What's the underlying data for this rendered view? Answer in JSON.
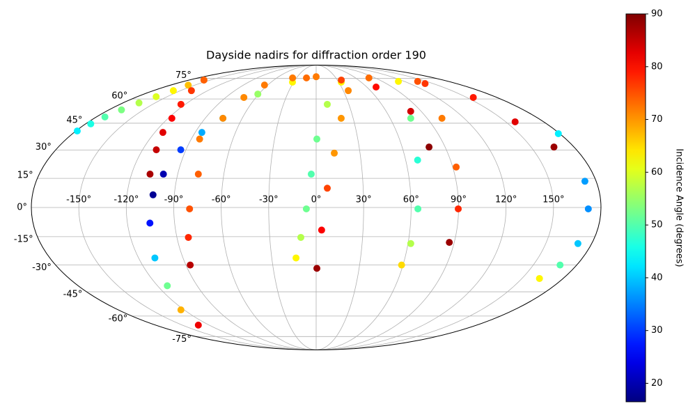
{
  "chart_data": {
    "type": "scatter",
    "projection": "mollweide",
    "title": "Dayside nadirs for diffraction order 190",
    "colormap": "jet",
    "grid": true,
    "xlim": [
      -180,
      180
    ],
    "ylim": [
      -90,
      90
    ],
    "xticks": [
      {
        "value": -150,
        "label": "-150°"
      },
      {
        "value": -120,
        "label": "-120°"
      },
      {
        "value": -90,
        "label": "-90°"
      },
      {
        "value": -60,
        "label": "-60°"
      },
      {
        "value": -30,
        "label": "-30°"
      },
      {
        "value": 0,
        "label": "0°"
      },
      {
        "value": 30,
        "label": "30°"
      },
      {
        "value": 60,
        "label": "60°"
      },
      {
        "value": 90,
        "label": "90°"
      },
      {
        "value": 120,
        "label": "120°"
      },
      {
        "value": 150,
        "label": "150°"
      }
    ],
    "yticks": [
      {
        "value": -75,
        "label": "-75°"
      },
      {
        "value": -60,
        "label": "-60°"
      },
      {
        "value": -45,
        "label": "-45°"
      },
      {
        "value": -30,
        "label": "-30°"
      },
      {
        "value": -15,
        "label": "-15°"
      },
      {
        "value": 0,
        "label": "0°"
      },
      {
        "value": 15,
        "label": "15°"
      },
      {
        "value": 30,
        "label": "30°"
      },
      {
        "value": 45,
        "label": "45°"
      },
      {
        "value": 60,
        "label": "60°"
      },
      {
        "value": 75,
        "label": "75°"
      }
    ],
    "colorbar": {
      "label": "Incidence Angle (degrees)",
      "clim": [
        16.5,
        90
      ],
      "ticks": [
        20,
        30,
        40,
        50,
        60,
        70,
        80,
        90
      ]
    },
    "series": [
      {
        "x": [
          -179,
          -176,
          -173,
          -169,
          -165,
          -161,
          -158,
          -158,
          -159
        ],
        "y": [
          40.5,
          44.6,
          48.7,
          53,
          57.4,
          61.5,
          65.7,
          69.7,
          73.7
        ],
        "values": [
          43,
          46,
          50,
          53,
          57,
          60,
          63,
          67,
          72
        ]
      },
      {
        "x": [
          -159,
          -138,
          -124,
          -117,
          -114,
          -110.5,
          -108
        ],
        "y": [
          73.7,
          65.7,
          56.5,
          47.9,
          39.7,
          30.1,
          17.2
        ],
        "values": [
          74,
          77,
          79,
          81,
          83,
          85,
          87
        ]
      },
      {
        "x": [
          -31.5,
          -61,
          -75.6,
          -85,
          -93.6,
          -99.3,
          -103.5,
          -105.7,
          -109,
          -112.6,
          -123,
          -132
        ],
        "y": [
          72,
          63.3,
          47.9,
          39.7,
          30.1,
          17.2,
          6.5,
          -8,
          -26.2,
          -41.5,
          -56,
          -66.2
        ],
        "values": [
          63,
          55,
          45,
          38,
          30,
          20,
          18,
          27,
          40,
          52,
          68,
          82
        ]
      },
      {
        "x": [
          0,
          -36,
          -64,
          -72,
          -75.6,
          -84,
          -76.6,
          -80,
          -82.6,
          -87
        ],
        "y": [
          76.5,
          75.5,
          69.8,
          61,
          47.9,
          36,
          17.2,
          -0.7,
          -15.4,
          -30
        ],
        "values": [
          72,
          72,
          72,
          71,
          71,
          72,
          74,
          75,
          78,
          86
        ]
      },
      {
        "x": [
          33.4,
          10.2,
          0.5,
          -3.2,
          -6.2,
          -9.9,
          -13.6
        ],
        "y": [
          72,
          56.5,
          36,
          17.2,
          -0.7,
          -15.4,
          -26.2
        ],
        "values": [
          63,
          57,
          52,
          50,
          52,
          57,
          63
        ]
      },
      {
        "x": [
          -14.8,
          35.6,
          71,
          81,
          78.8
        ],
        "y": [
          75.5,
          73.7,
          68.3,
          52.1,
          31.6
        ],
        "values": [
          73,
          76,
          80,
          84,
          89
        ]
      },
      {
        "x": [
          80.5,
          35.5,
          20.3,
          12.4,
          7.1,
          3.5,
          0.5
        ],
        "y": [
          75.5,
          65.7,
          47.9,
          28.3,
          9.9,
          -11.6,
          -31.8
        ],
        "values": [
          73,
          71,
          70,
          70,
          76,
          81,
          88
        ]
      },
      {
        "x": [
          111.8,
          76.7,
          68,
          64.3,
          61.8,
          59
        ],
        "y": [
          72.6,
          47.9,
          24.6,
          -0.7,
          -18.6,
          -30
        ],
        "values": [
          63,
          52,
          47,
          50,
          57,
          65
        ]
      },
      {
        "x": [
          138,
          102,
          92.3,
          89.8,
          86.8
        ],
        "y": [
          72.6,
          47.9,
          20.9,
          -0.7,
          -18
        ],
        "values": [
          75,
          72,
          74,
          78,
          88
        ]
      },
      {
        "x": [
          139.7,
          156.5,
          157.4,
          166
        ],
        "y": [
          70.9,
          61,
          45.8,
          31.6
        ],
        "values": [
          77,
          79,
          83,
          88
        ]
      },
      {
        "x": [
          179,
          172.8,
          172,
          171,
          168.5,
          162.8
        ],
        "y": [
          39,
          13.5,
          -0.7,
          -18.6,
          -30,
          -37.4
        ],
        "values": [
          43,
          37,
          36,
          40,
          50,
          63
        ]
      }
    ]
  }
}
